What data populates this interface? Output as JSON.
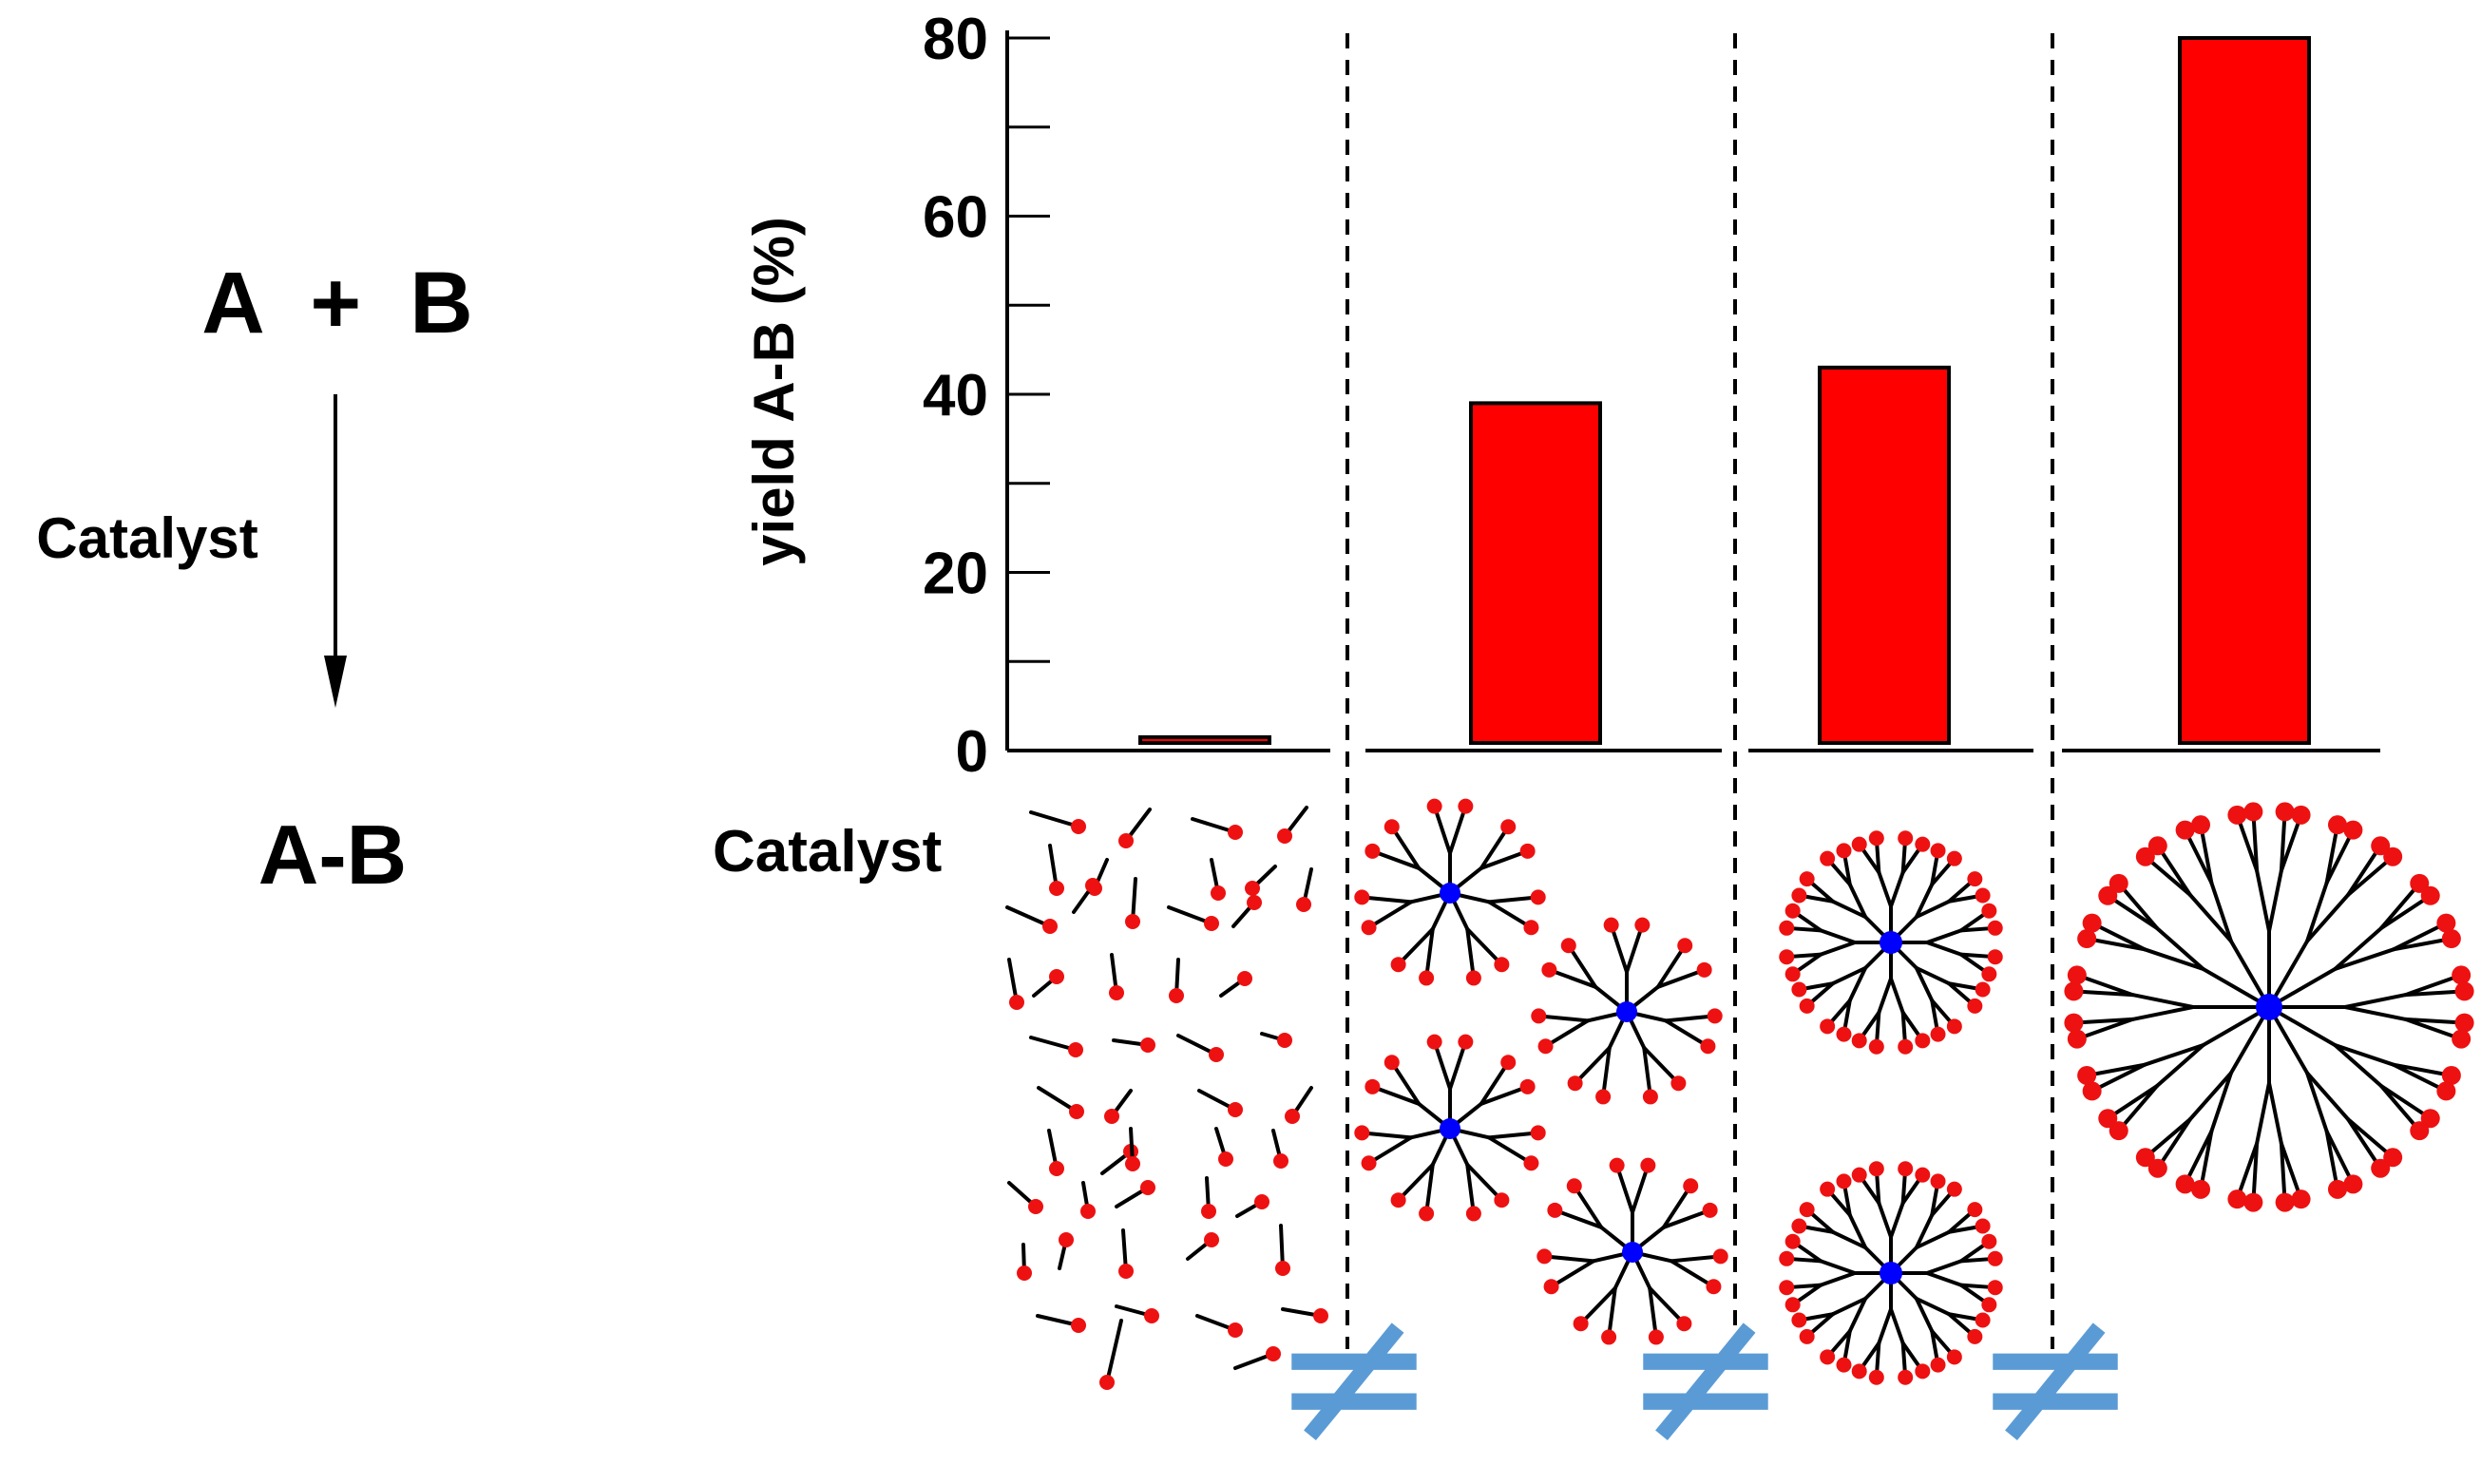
{
  "reaction": {
    "reactants": "A  +  B",
    "reagent": "Catalyst",
    "product": "A-B"
  },
  "chart_data": {
    "type": "bar",
    "categories": [
      "monomer",
      "small dendrimer",
      "medium dendrimer",
      "large dendrimer"
    ],
    "values": [
      1.5,
      39,
      43,
      80
    ],
    "title": "",
    "xlabel": "Catalyst",
    "ylabel": "yield A-B (%)",
    "ylim": [
      0,
      80
    ],
    "yticks": [
      0,
      20,
      40,
      60,
      80
    ],
    "grid": false,
    "legend": "none"
  },
  "separator_symbol": "≠",
  "colors": {
    "bar_fill": "#ff0000",
    "end_group": "#ee1111",
    "core": "#0000ff",
    "separator": "#5b9bd5",
    "ink": "#000000"
  }
}
